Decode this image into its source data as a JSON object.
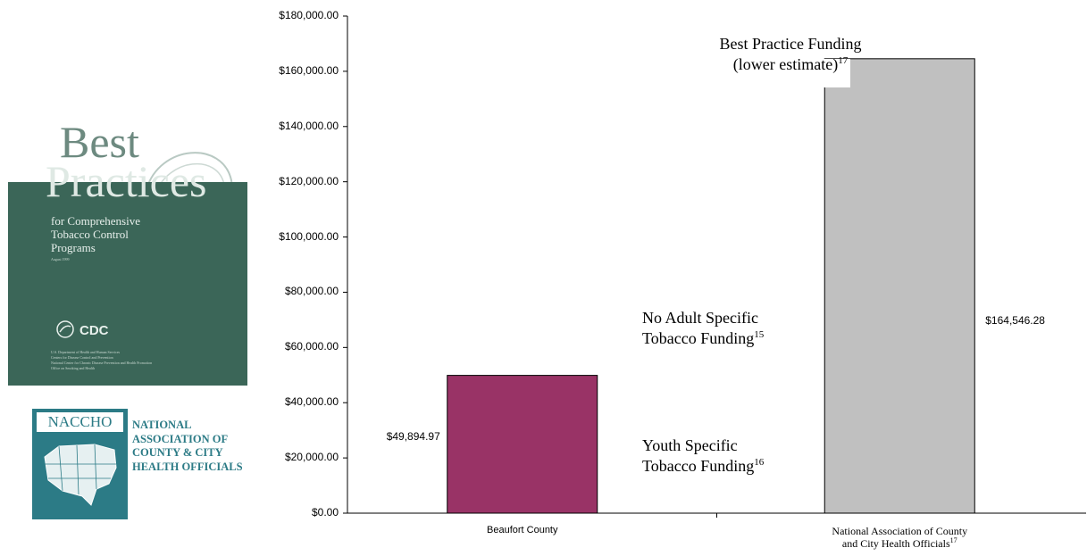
{
  "chart_data": {
    "type": "bar",
    "categories": [
      "Beaufort County",
      "National Association of County and City Health Officials"
    ],
    "category_superscripts": [
      "",
      "17"
    ],
    "values": [
      49894.97,
      164546.28
    ],
    "value_labels": [
      "$49,894.97",
      "$164,546.28"
    ],
    "bar_colors": [
      "#993366",
      "#c0c0c0"
    ],
    "ylim": [
      0,
      180000
    ],
    "ytick_labels": [
      "$0.00",
      "$20,000.00",
      "$40,000.00",
      "$60,000.00",
      "$80,000.00",
      "$100,000.00",
      "$120,000.00",
      "$140,000.00",
      "$160,000.00",
      "$180,000.00"
    ],
    "grid": false,
    "annotations": [
      {
        "lines": [
          "Best Practice Funding",
          "(lower estimate)"
        ],
        "sup": "17"
      },
      {
        "lines": [
          "No Adult Specific",
          "Tobacco Funding"
        ],
        "sup": "15"
      },
      {
        "lines": [
          "Youth Specific",
          "Tobacco Funding"
        ],
        "sup": "16"
      }
    ]
  },
  "cover": {
    "title_line1": "Best",
    "title_line2": "Practices",
    "subtitle": [
      "for Comprehensive",
      "Tobacco Control",
      "Programs"
    ],
    "date": "August 1999",
    "logo_text": "CDC",
    "agency_lines": [
      "U.S. Department of Health and Human Services",
      "Centers for Disease Control and Prevention",
      "National Center for Chronic Disease Prevention and Health Promotion",
      "Office on Smoking and Health"
    ]
  },
  "naccho": {
    "logo_text": "NACCHO",
    "name_lines": [
      "NATIONAL",
      "ASSOCIATION OF",
      "COUNTY & CITY",
      "HEALTH OFFICIALS"
    ],
    "colors": {
      "teal": "#2c7b86"
    }
  }
}
